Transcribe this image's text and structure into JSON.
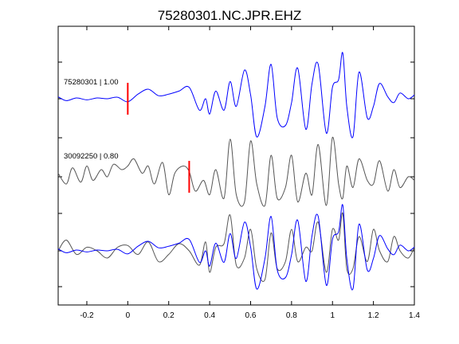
{
  "chart_data": {
    "type": "line",
    "title": "75280301.NC.JPR.EHZ",
    "xlabel": "",
    "ylabel": "",
    "xlim": [
      -0.34,
      1.4
    ],
    "xticks": [
      -0.2,
      0,
      0.2,
      0.4,
      0.6,
      0.8,
      1,
      1.2,
      1.4
    ],
    "xtick_labels": [
      "-0.2",
      "0",
      "0.2",
      "0.4",
      "0.6",
      "0.8",
      "1",
      "1.2",
      "1.4"
    ],
    "grid": false,
    "colors": {
      "primary": "#0000ff",
      "secondary": "#555555",
      "pick": "#ff0000",
      "axes": "#000000"
    },
    "traces": [
      {
        "label": "75280301 | 1.00",
        "color": "#0000ff",
        "pick_time": 0.0,
        "x": [
          -0.34,
          -0.3,
          -0.25,
          -0.2,
          -0.15,
          -0.1,
          -0.05,
          0,
          0.05,
          0.1,
          0.15,
          0.2,
          0.25,
          0.3,
          0.35,
          0.38,
          0.4,
          0.43,
          0.47,
          0.5,
          0.53,
          0.57,
          0.6,
          0.63,
          0.67,
          0.7,
          0.73,
          0.77,
          0.8,
          0.83,
          0.87,
          0.9,
          0.93,
          0.97,
          1.0,
          1.03,
          1.05,
          1.07,
          1.1,
          1.13,
          1.17,
          1.2,
          1.23,
          1.27,
          1.3,
          1.33,
          1.37,
          1.4
        ],
        "y": [
          0.05,
          -0.05,
          0.02,
          -0.03,
          0.02,
          0.0,
          0.04,
          -0.08,
          0.12,
          0.25,
          0.08,
          0.12,
          0.2,
          0.3,
          -0.3,
          0.0,
          -0.4,
          0.2,
          -0.3,
          0.45,
          -0.2,
          0.75,
          0.1,
          -1.0,
          -0.2,
          0.9,
          -0.5,
          -0.7,
          -0.1,
          0.8,
          -0.8,
          0.4,
          0.9,
          -0.9,
          0.3,
          0.5,
          1.2,
          -0.2,
          -1.0,
          0.7,
          -0.5,
          -0.2,
          0.4,
          0.05,
          -0.1,
          0.15,
          0.0,
          0.1
        ]
      },
      {
        "label": "30092250 | 0.80",
        "color": "#555555",
        "pick_time": 0.3,
        "x": [
          -0.34,
          -0.3,
          -0.27,
          -0.23,
          -0.2,
          -0.17,
          -0.13,
          -0.1,
          -0.07,
          -0.03,
          0,
          0.03,
          0.07,
          0.1,
          0.13,
          0.17,
          0.2,
          0.23,
          0.27,
          0.3,
          0.33,
          0.37,
          0.4,
          0.43,
          0.47,
          0.5,
          0.53,
          0.57,
          0.6,
          0.63,
          0.67,
          0.7,
          0.73,
          0.77,
          0.8,
          0.83,
          0.87,
          0.9,
          0.93,
          0.97,
          1.0,
          1.03,
          1.05,
          1.07,
          1.1,
          1.13,
          1.17,
          1.2,
          1.23,
          1.27,
          1.3,
          1.33,
          1.37,
          1.4
        ],
        "y": [
          0.1,
          -0.2,
          0.25,
          -0.15,
          0.3,
          -0.1,
          0.2,
          0.0,
          0.35,
          0.2,
          0.3,
          0.5,
          0.1,
          0.3,
          -0.2,
          0.4,
          -0.5,
          0.1,
          0.3,
          0.15,
          -0.4,
          -0.1,
          -0.5,
          0.2,
          -0.6,
          1.05,
          -0.5,
          -0.7,
          1.0,
          -0.2,
          -0.8,
          0.6,
          -0.6,
          -0.3,
          0.6,
          -0.7,
          0.1,
          -0.5,
          0.9,
          -0.8,
          1.1,
          -0.2,
          -0.6,
          0.3,
          -0.3,
          0.5,
          -0.1,
          -0.2,
          0.45,
          -0.4,
          0.2,
          -0.3,
          0.0,
          -0.1
        ]
      }
    ],
    "overlay": {
      "x": [
        -0.34,
        -0.3,
        -0.25,
        -0.2,
        -0.15,
        -0.1,
        -0.05,
        0,
        0.05,
        0.1,
        0.15,
        0.2,
        0.25,
        0.3,
        0.35,
        0.38,
        0.4,
        0.43,
        0.47,
        0.5,
        0.53,
        0.57,
        0.6,
        0.63,
        0.67,
        0.7,
        0.73,
        0.77,
        0.8,
        0.83,
        0.87,
        0.9,
        0.93,
        0.97,
        1.0,
        1.03,
        1.05,
        1.07,
        1.1,
        1.13,
        1.17,
        1.2,
        1.23,
        1.27,
        1.3,
        1.33,
        1.37,
        1.4
      ],
      "series_a": [
        0.05,
        -0.05,
        0.02,
        -0.03,
        0.02,
        0.0,
        0.04,
        -0.08,
        0.12,
        0.25,
        0.08,
        0.12,
        0.2,
        0.3,
        -0.3,
        0.0,
        -0.4,
        0.2,
        -0.3,
        0.45,
        -0.2,
        0.75,
        0.1,
        -1.0,
        -0.2,
        0.9,
        -0.5,
        -0.7,
        -0.1,
        0.8,
        -0.8,
        0.4,
        0.9,
        -0.9,
        0.3,
        0.5,
        1.2,
        -0.2,
        -1.0,
        0.7,
        -0.5,
        -0.2,
        0.4,
        0.05,
        -0.1,
        0.15,
        0.0,
        0.1
      ],
      "series_b": [
        0.0,
        0.3,
        -0.1,
        0.1,
        0.0,
        -0.2,
        0.1,
        0.15,
        -0.1,
        0.25,
        -0.3,
        -0.1,
        0.2,
        0.0,
        -0.4,
        0.25,
        -0.6,
        0.1,
        0.2,
        1.0,
        -0.4,
        -0.2,
        0.6,
        -0.5,
        -0.8,
        0.5,
        -0.5,
        -0.3,
        0.6,
        -0.3,
        0.1,
        0.0,
        0.8,
        -0.6,
        0.6,
        0.3,
        1.05,
        -0.5,
        -0.5,
        0.4,
        -0.3,
        0.6,
        0.0,
        -0.3,
        0.4,
        0.0,
        -0.2,
        0.1
      ]
    }
  }
}
